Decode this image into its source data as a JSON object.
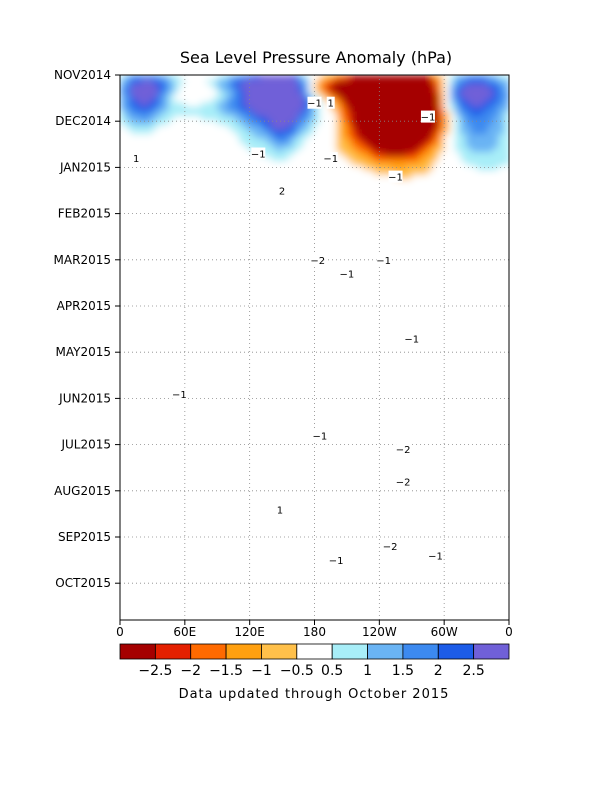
{
  "chart_data": {
    "type": "heatmap",
    "title": "Sea Level Pressure Anomaly (hPa)",
    "xlabel": "",
    "ylabel": "",
    "x_ticks": [
      "0",
      "60E",
      "120E",
      "180",
      "120W",
      "60W",
      "0"
    ],
    "x_range": [
      0,
      360
    ],
    "y_ticks": [
      "NOV2014",
      "DEC2014",
      "JAN2015",
      "FEB2015",
      "MAR2015",
      "APR2015",
      "MAY2015",
      "JUN2015",
      "JUL2015",
      "AUG2015",
      "SEP2015",
      "OCT2015"
    ],
    "y_range": [
      "NOV2014",
      "OCT2015 end"
    ],
    "colorbar": {
      "levels": [
        -2.5,
        -2,
        -1.5,
        -1,
        -0.5,
        0.5,
        1,
        1.5,
        2,
        2.5
      ],
      "labels": [
        "−2.5",
        "−2",
        "−1.5",
        "−1",
        "−0.5",
        "0.5",
        "1",
        "1.5",
        "2",
        "2.5"
      ],
      "colors": [
        "#a50000",
        "#e42000",
        "#ff6a00",
        "#ffa010",
        "#ffc04a",
        "#ffffff",
        "#a8eef8",
        "#6ab4f4",
        "#3c8af0",
        "#1c5ce8",
        "#7060d8"
      ]
    },
    "grid": true,
    "contour_labels": [
      {
        "text": "−1",
        "lon": 180,
        "month": 0.6
      },
      {
        "text": "1",
        "lon": 195,
        "month": 0.6
      },
      {
        "text": "−1",
        "lon": 285,
        "month": 0.9
      },
      {
        "text": "1",
        "lon": 15,
        "month": 1.8
      },
      {
        "text": "−1",
        "lon": 128,
        "month": 1.7
      },
      {
        "text": "−1",
        "lon": 195,
        "month": 1.8
      },
      {
        "text": "−1",
        "lon": 255,
        "month": 2.2
      },
      {
        "text": "2",
        "lon": 150,
        "month": 2.5
      },
      {
        "text": "−2",
        "lon": 183,
        "month": 4.0
      },
      {
        "text": "−1",
        "lon": 210,
        "month": 4.3
      },
      {
        "text": "−1",
        "lon": 244,
        "month": 4.0
      },
      {
        "text": "−1",
        "lon": 270,
        "month": 5.7
      },
      {
        "text": "−1",
        "lon": 55,
        "month": 6.9
      },
      {
        "text": "−1",
        "lon": 185,
        "month": 7.8
      },
      {
        "text": "−2",
        "lon": 262,
        "month": 8.1
      },
      {
        "text": "−2",
        "lon": 262,
        "month": 8.8
      },
      {
        "text": "1",
        "lon": 148,
        "month": 9.4
      },
      {
        "text": "−2",
        "lon": 250,
        "month": 10.2
      },
      {
        "text": "−1",
        "lon": 200,
        "month": 10.5
      },
      {
        "text": "−1",
        "lon": 292,
        "month": 10.4
      }
    ]
  },
  "footer": {
    "note": "Data updated through October 2015"
  }
}
